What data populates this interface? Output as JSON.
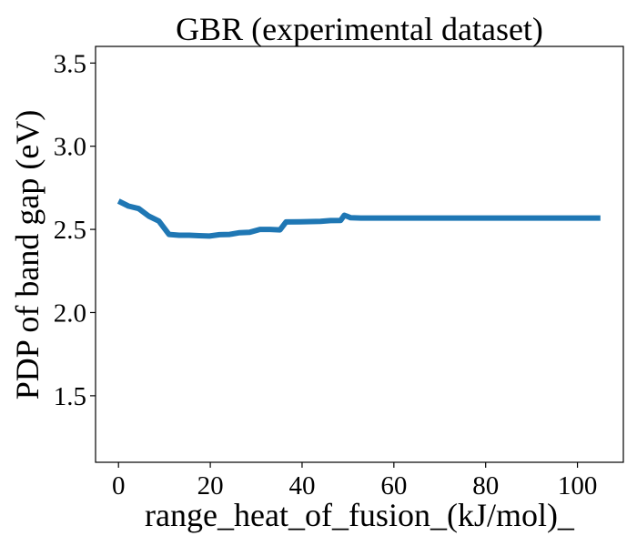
{
  "chart_data": {
    "type": "line",
    "title": "GBR (experimental dataset)",
    "xlabel": "range_heat_of_fusion_(kJ/mol)_",
    "ylabel": "PDP of band gap (eV)",
    "xlim": [
      -5,
      110
    ],
    "ylim": [
      1.1,
      3.6
    ],
    "xticks": [
      0,
      20,
      40,
      60,
      80,
      100
    ],
    "xtick_labels": [
      "0",
      "20",
      "40",
      "60",
      "80",
      "100"
    ],
    "yticks": [
      1.5,
      2.0,
      2.5,
      3.0,
      3.5
    ],
    "ytick_labels": [
      "1.5",
      "2.0",
      "2.5",
      "3.0",
      "3.5"
    ],
    "grid": false,
    "line_color": "#1f77b4",
    "series": [
      {
        "x": [
          0,
          2.2,
          4.4,
          6.6,
          8.8,
          11,
          13.2,
          15.4,
          17.6,
          19.8,
          22,
          24.2,
          26.4,
          28.6,
          30.8,
          33,
          35.2,
          36.5,
          39.6,
          41.8,
          44,
          46.2,
          48.4,
          49.2,
          50.6,
          52.8,
          55,
          60,
          70,
          80,
          90,
          100,
          105
        ],
        "y": [
          2.67,
          2.64,
          2.625,
          2.58,
          2.55,
          2.47,
          2.465,
          2.465,
          2.462,
          2.46,
          2.468,
          2.47,
          2.48,
          2.483,
          2.5,
          2.5,
          2.497,
          2.545,
          2.546,
          2.547,
          2.548,
          2.553,
          2.554,
          2.585,
          2.57,
          2.568,
          2.568,
          2.568,
          2.568,
          2.568,
          2.568,
          2.568,
          2.568
        ]
      }
    ]
  }
}
